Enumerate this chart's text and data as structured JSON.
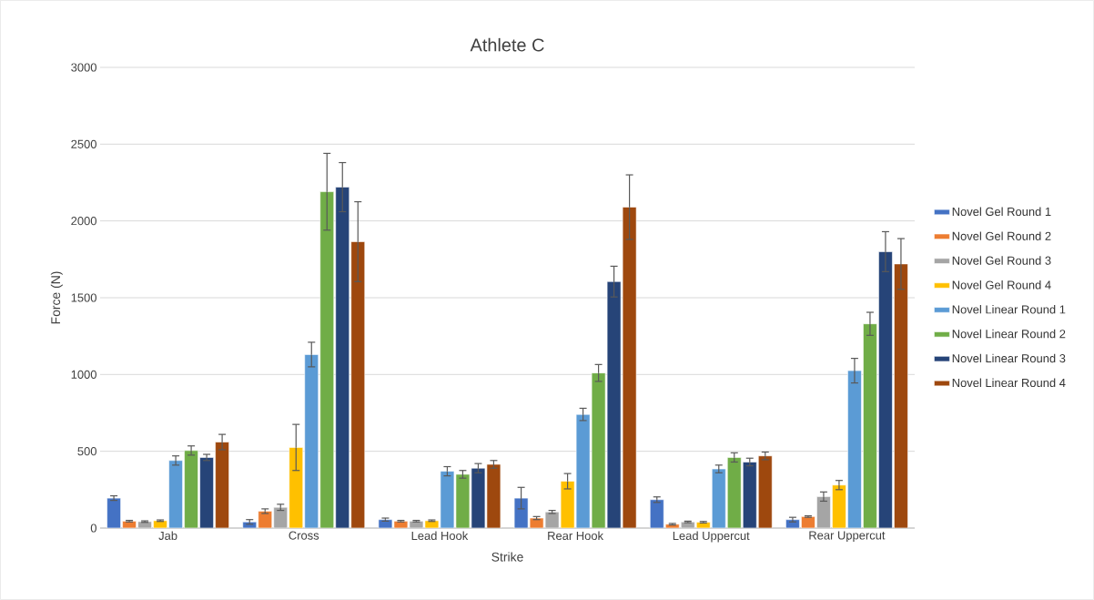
{
  "chart_data": {
    "type": "bar",
    "title": "Athlete C",
    "xlabel": "Strike",
    "ylabel": "Force (N)",
    "categories": [
      "Jab",
      "Cross",
      "Lead Hook",
      "Rear Hook",
      "Lead Uppercut",
      "Rear Uppercut"
    ],
    "series": [
      {
        "name": "Novel Gel Round 1",
        "color": "#4472c4",
        "values": [
          195,
          40,
          55,
          195,
          185,
          55
        ],
        "errors": [
          15,
          15,
          10,
          70,
          18,
          15
        ]
      },
      {
        "name": "Novel Gel Round 2",
        "color": "#ed7d31",
        "values": [
          45,
          110,
          45,
          65,
          25,
          75
        ],
        "errors": [
          5,
          15,
          5,
          10,
          5,
          5
        ]
      },
      {
        "name": "Novel Gel Round 3",
        "color": "#a5a5a5",
        "values": [
          42,
          135,
          45,
          105,
          40,
          205
        ],
        "errors": [
          5,
          20,
          5,
          10,
          5,
          30
        ]
      },
      {
        "name": "Novel Gel Round 4",
        "color": "#ffc000",
        "values": [
          48,
          525,
          48,
          305,
          38,
          280
        ],
        "errors": [
          5,
          150,
          5,
          50,
          5,
          30
        ]
      },
      {
        "name": "Novel Linear Round 1",
        "color": "#5b9bd5",
        "values": [
          440,
          1130,
          370,
          740,
          385,
          1025
        ],
        "errors": [
          30,
          80,
          30,
          40,
          25,
          80
        ]
      },
      {
        "name": "Novel Linear Round 2",
        "color": "#70ad47",
        "values": [
          505,
          2190,
          350,
          1010,
          460,
          1330
        ],
        "errors": [
          30,
          250,
          25,
          55,
          30,
          75
        ]
      },
      {
        "name": "Novel Linear Round 3",
        "color": "#264478",
        "values": [
          460,
          2220,
          390,
          1605,
          430,
          1800
        ],
        "errors": [
          20,
          160,
          30,
          100,
          25,
          130
        ]
      },
      {
        "name": "Novel Linear Round 4",
        "color": "#9e480e",
        "values": [
          560,
          1865,
          415,
          2090,
          470,
          1720
        ],
        "errors": [
          50,
          260,
          25,
          210,
          25,
          165
        ]
      }
    ],
    "ylim": [
      0,
      3000
    ],
    "yticks": [
      0,
      500,
      1000,
      1500,
      2000,
      2500,
      3000
    ],
    "grid": "y",
    "legend": "right"
  }
}
